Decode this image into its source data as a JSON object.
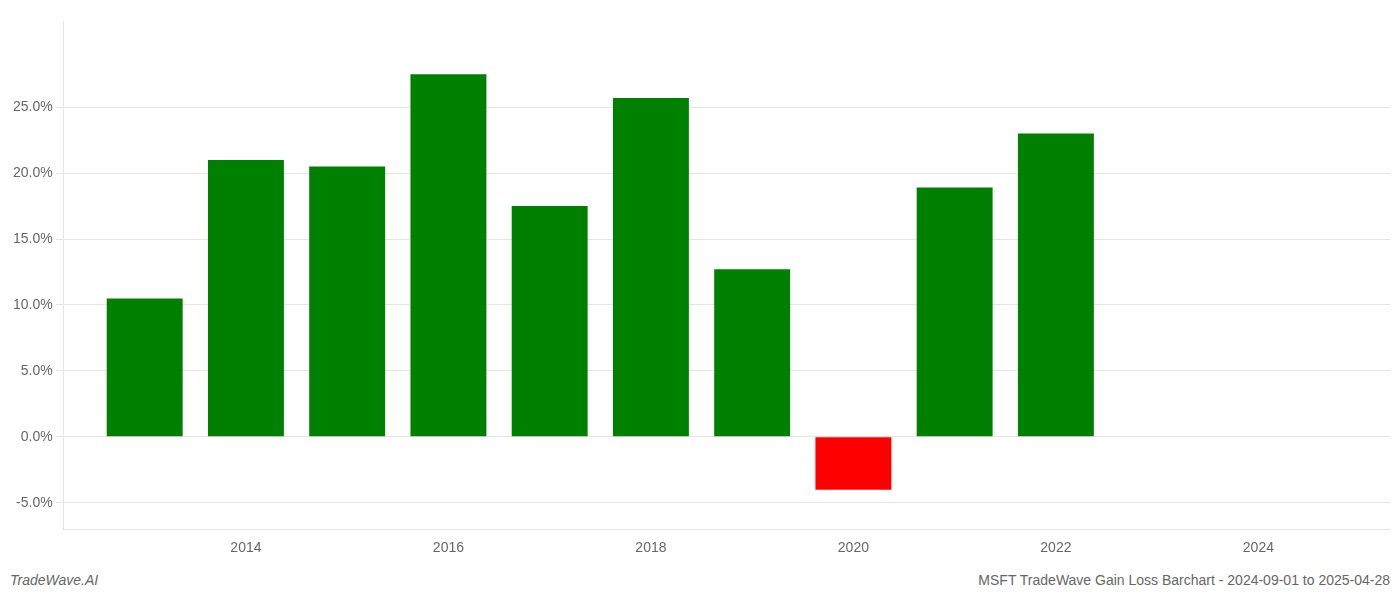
{
  "chart_data": {
    "type": "bar",
    "x": [
      2013,
      2014,
      2015,
      2016,
      2017,
      2018,
      2019,
      2020,
      2021,
      2022
    ],
    "values": [
      0.105,
      0.21,
      0.205,
      0.275,
      0.175,
      0.257,
      0.127,
      -0.04,
      0.189,
      0.23
    ],
    "colors": [
      "#008000",
      "#008000",
      "#008000",
      "#008000",
      "#008000",
      "#008000",
      "#008000",
      "#ff0000",
      "#008000",
      "#008000"
    ],
    "xlim": [
      2012.2,
      2025.3
    ],
    "xticks": [
      2014,
      2016,
      2018,
      2020,
      2022,
      2024
    ],
    "ylim": [
      -0.07,
      0.315
    ],
    "yticks": [
      {
        "value": -0.05,
        "label": "-5.0%"
      },
      {
        "value": 0.0,
        "label": "0.0%"
      },
      {
        "value": 0.05,
        "label": "5.0%"
      },
      {
        "value": 0.1,
        "label": "10.0%"
      },
      {
        "value": 0.15,
        "label": "15.0%"
      },
      {
        "value": 0.2,
        "label": "20.0%"
      },
      {
        "value": 0.25,
        "label": "25.0%"
      }
    ],
    "grid": true,
    "annotations": [
      "TradeWave.AI",
      "MSFT TradeWave Gain Loss Barchart - 2024-09-01 to 2025-04-28"
    ]
  }
}
